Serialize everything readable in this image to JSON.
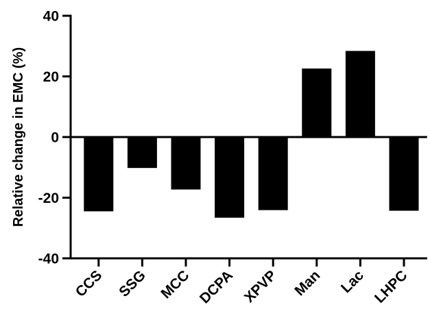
{
  "chart_data": {
    "type": "bar",
    "title": "",
    "xlabel": "",
    "ylabel": "Relative change in EMC (%)",
    "ylim": [
      -40,
      40
    ],
    "yticks": [
      -40,
      -20,
      0,
      20,
      40
    ],
    "ytick_labels": [
      "-40",
      "-20",
      "0",
      "20",
      "40"
    ],
    "categories": [
      "CCS",
      "SSG",
      "MCC",
      "DCPA",
      "XPVP",
      "Man",
      "Lac",
      "LHPC"
    ],
    "values": [
      -24.5,
      -10.2,
      -17.3,
      -26.6,
      -24.1,
      22.6,
      28.4,
      -24.3
    ],
    "bar_color": "#000000",
    "grid": false,
    "legend": "none"
  }
}
